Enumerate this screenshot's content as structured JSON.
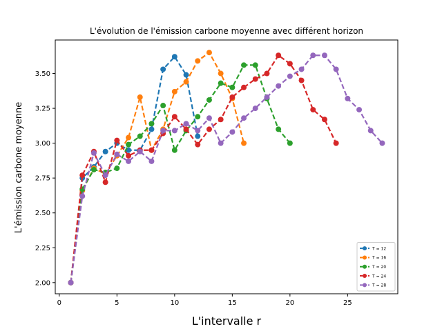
{
  "chart_data": {
    "type": "line",
    "title": "L'évolution de l'émission carbone moyenne avec différent horizon",
    "xlabel": "L'intervalle r",
    "ylabel": "L'émission carbone moyenne",
    "xlim": [
      -0.35,
      29.35
    ],
    "ylim": [
      1.92,
      3.74
    ],
    "xticks": [
      0,
      5,
      10,
      15,
      20,
      25
    ],
    "yticks": [
      2.0,
      2.25,
      2.5,
      2.75,
      3.0,
      3.25,
      3.5
    ],
    "ytick_labels": [
      "2.00",
      "2.25",
      "2.50",
      "2.75",
      "3.00",
      "3.25",
      "3.50"
    ],
    "grid": false,
    "legend_position": "lower-right",
    "series": [
      {
        "name": "T = 12",
        "color": "#1f77b4",
        "x": [
          1,
          2,
          3,
          4,
          5,
          6,
          7,
          8,
          9,
          10,
          11,
          12
        ],
        "y": [
          2.0,
          2.75,
          2.83,
          2.94,
          3.0,
          2.95,
          2.95,
          3.1,
          3.53,
          3.62,
          3.49,
          3.05
        ]
      },
      {
        "name": "T = 16",
        "color": "#ff7f0e",
        "x": [
          1,
          2,
          3,
          4,
          5,
          6,
          7,
          8,
          9,
          10,
          11,
          12,
          13,
          14,
          15,
          16
        ],
        "y": [
          2.0,
          2.66,
          2.82,
          2.78,
          2.91,
          3.04,
          3.33,
          2.95,
          3.1,
          3.37,
          3.44,
          3.59,
          3.65,
          3.5,
          3.32,
          3.0
        ]
      },
      {
        "name": "T = 20",
        "color": "#2ca02c",
        "x": [
          1,
          2,
          3,
          4,
          5,
          6,
          7,
          8,
          9,
          10,
          11,
          12,
          13,
          14,
          15,
          16,
          17,
          18,
          19,
          20
        ],
        "y": [
          2.0,
          2.67,
          2.81,
          2.79,
          2.82,
          2.99,
          3.05,
          3.14,
          3.27,
          2.95,
          3.09,
          3.19,
          3.31,
          3.43,
          3.4,
          3.56,
          3.56,
          3.32,
          3.1,
          3.0
        ]
      },
      {
        "name": "T = 24",
        "color": "#d62728",
        "x": [
          1,
          2,
          3,
          4,
          5,
          6,
          7,
          8,
          9,
          10,
          11,
          12,
          13,
          14,
          15,
          16,
          17,
          18,
          19,
          20,
          21,
          22,
          23,
          24
        ],
        "y": [
          2.0,
          2.77,
          2.94,
          2.72,
          3.02,
          2.91,
          2.95,
          2.95,
          3.07,
          3.19,
          3.1,
          2.99,
          3.1,
          3.17,
          3.33,
          3.4,
          3.46,
          3.5,
          3.63,
          3.57,
          3.45,
          3.24,
          3.17,
          3.0
        ]
      },
      {
        "name": "T = 28",
        "color": "#9467bd",
        "x": [
          1,
          2,
          3,
          4,
          5,
          6,
          7,
          8,
          9,
          10,
          11,
          12,
          13,
          14,
          15,
          16,
          17,
          18,
          19,
          20,
          21,
          22,
          23,
          24,
          25,
          26,
          27,
          28
        ],
        "y": [
          2.0,
          2.62,
          2.93,
          2.77,
          2.92,
          2.87,
          2.94,
          2.87,
          3.09,
          3.09,
          3.14,
          3.09,
          3.18,
          3.0,
          3.08,
          3.18,
          3.25,
          3.33,
          3.41,
          3.48,
          3.53,
          3.63,
          3.63,
          3.53,
          3.32,
          3.24,
          3.09,
          3.0
        ]
      }
    ]
  }
}
